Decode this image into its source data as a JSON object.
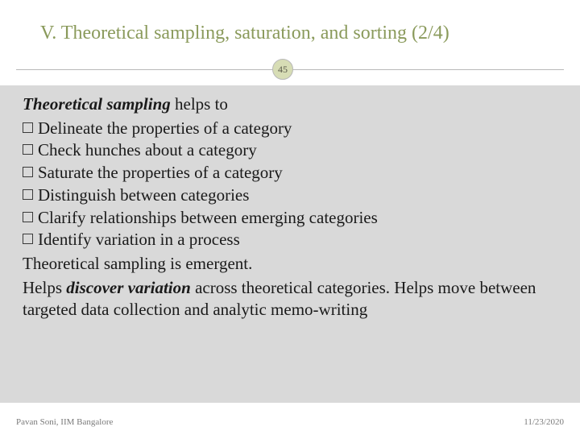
{
  "colors": {
    "title": "#8a9a5b",
    "badge_bg": "#d7ddb5",
    "badge_border": "#b8b8b8",
    "content_bg": "#d9d9d9",
    "text": "#1a1a1a",
    "footer_text": "#7a7a7a",
    "hr": "#b8b8b8"
  },
  "typography": {
    "title_fontsize": 24,
    "body_fontsize": 21,
    "footer_fontsize": 11,
    "font_family": "Georgia, serif"
  },
  "slide": {
    "title": "V. Theoretical sampling, saturation, and sorting (2/4)",
    "number": "45",
    "lead_strong": "Theoretical sampling",
    "lead_rest": " helps to",
    "bullets": [
      "Delineate the properties of a category",
      "Check hunches about a category",
      "Saturate the properties of a category",
      "Distinguish between categories",
      "Clarify relationships between emerging categories",
      "Identify variation in a process"
    ],
    "para1": "Theoretical sampling is emergent.",
    "para2_a": "Helps ",
    "para2_strong": "discover variation",
    "para2_b": " across theoretical categories. Helps move between targeted data collection and analytic memo-writing"
  },
  "footer": {
    "left": "Pavan Soni, IIM Bangalore",
    "right": "11/23/2020"
  }
}
